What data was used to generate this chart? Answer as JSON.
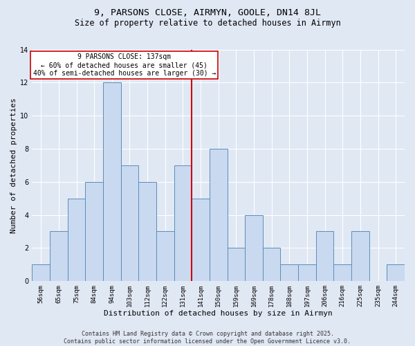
{
  "title1": "9, PARSONS CLOSE, AIRMYN, GOOLE, DN14 8JL",
  "title2": "Size of property relative to detached houses in Airmyn",
  "xlabel": "Distribution of detached houses by size in Airmyn",
  "ylabel": "Number of detached properties",
  "categories": [
    "56sqm",
    "65sqm",
    "75sqm",
    "84sqm",
    "94sqm",
    "103sqm",
    "112sqm",
    "122sqm",
    "131sqm",
    "141sqm",
    "150sqm",
    "159sqm",
    "169sqm",
    "178sqm",
    "188sqm",
    "197sqm",
    "206sqm",
    "216sqm",
    "225sqm",
    "235sqm",
    "244sqm"
  ],
  "values": [
    1,
    3,
    5,
    6,
    12,
    7,
    6,
    3,
    7,
    5,
    8,
    2,
    4,
    2,
    1,
    1,
    3,
    1,
    3,
    0,
    1
  ],
  "bar_color": "#c9d9f0",
  "bar_edge_color": "#5b8db8",
  "vline_x_idx": 9,
  "vline_color": "#cc0000",
  "annotation_text": "9 PARSONS CLOSE: 137sqm\n← 60% of detached houses are smaller (45)\n40% of semi-detached houses are larger (30) →",
  "annotation_box_color": "#ffffff",
  "annotation_box_edge": "#cc0000",
  "ylim": [
    0,
    14
  ],
  "yticks": [
    0,
    2,
    4,
    6,
    8,
    10,
    12,
    14
  ],
  "footer": "Contains HM Land Registry data © Crown copyright and database right 2025.\nContains public sector information licensed under the Open Government Licence v3.0.",
  "background_color": "#e0e8f4",
  "plot_bg_color": "#e0e8f4",
  "grid_color": "#ffffff",
  "title1_fontsize": 9.5,
  "title2_fontsize": 8.5,
  "xlabel_fontsize": 8,
  "ylabel_fontsize": 8,
  "tick_fontsize": 6.5,
  "annot_fontsize": 7,
  "footer_fontsize": 6
}
